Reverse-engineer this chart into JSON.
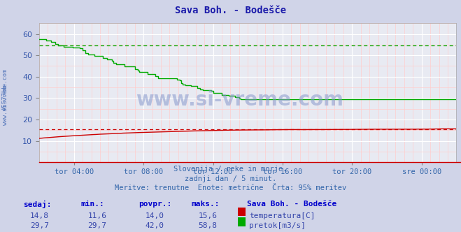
{
  "title": "Sava Boh. - Bodešče",
  "title_color": "#1a1aaa",
  "bg_color": "#d0d4e8",
  "plot_bg_color": "#e8eaf2",
  "grid_color_major": "#ffffff",
  "grid_color_minor": "#ffcccc",
  "x_tick_labels": [
    "tor 04:00",
    "tor 08:00",
    "tor 12:00",
    "tor 16:00",
    "tor 20:00",
    "sre 00:00"
  ],
  "ylim": [
    0,
    65
  ],
  "yticks": [
    10,
    20,
    30,
    40,
    50,
    60
  ],
  "temp_color": "#cc0000",
  "flow_color": "#00aa00",
  "temp_95pct": 15.6,
  "flow_95pct": 54.5,
  "subtitle1": "Slovenija / reke in morje.",
  "subtitle2": "zadnji dan / 5 minut.",
  "subtitle3": "Meritve: trenutne  Enote: metrične  Črta: 95% meritev",
  "subtitle_color": "#3366aa",
  "table_header_color": "#0000cc",
  "table_data_color": "#3344aa",
  "sedaj_label": "sedaj:",
  "min_label": "min.:",
  "povpr_label": "povpr.:",
  "maks_label": "maks.:",
  "station_label": "Sava Boh. - Bodešče",
  "temp_sedaj": "14,8",
  "temp_min": "11,6",
  "temp_povpr": "14,0",
  "temp_maks": "15,6",
  "flow_sedaj": "29,7",
  "flow_min": "29,7",
  "flow_povpr": "42,0",
  "flow_maks": "58,8",
  "temp_label": "temperatura[C]",
  "flow_label": "pretok[m3/s]",
  "ylabel_color": "#3355aa",
  "watermark_text": "www.si-vreme.com",
  "watermark_color": "#8899cc",
  "sidewatermark_color": "#5577bb"
}
